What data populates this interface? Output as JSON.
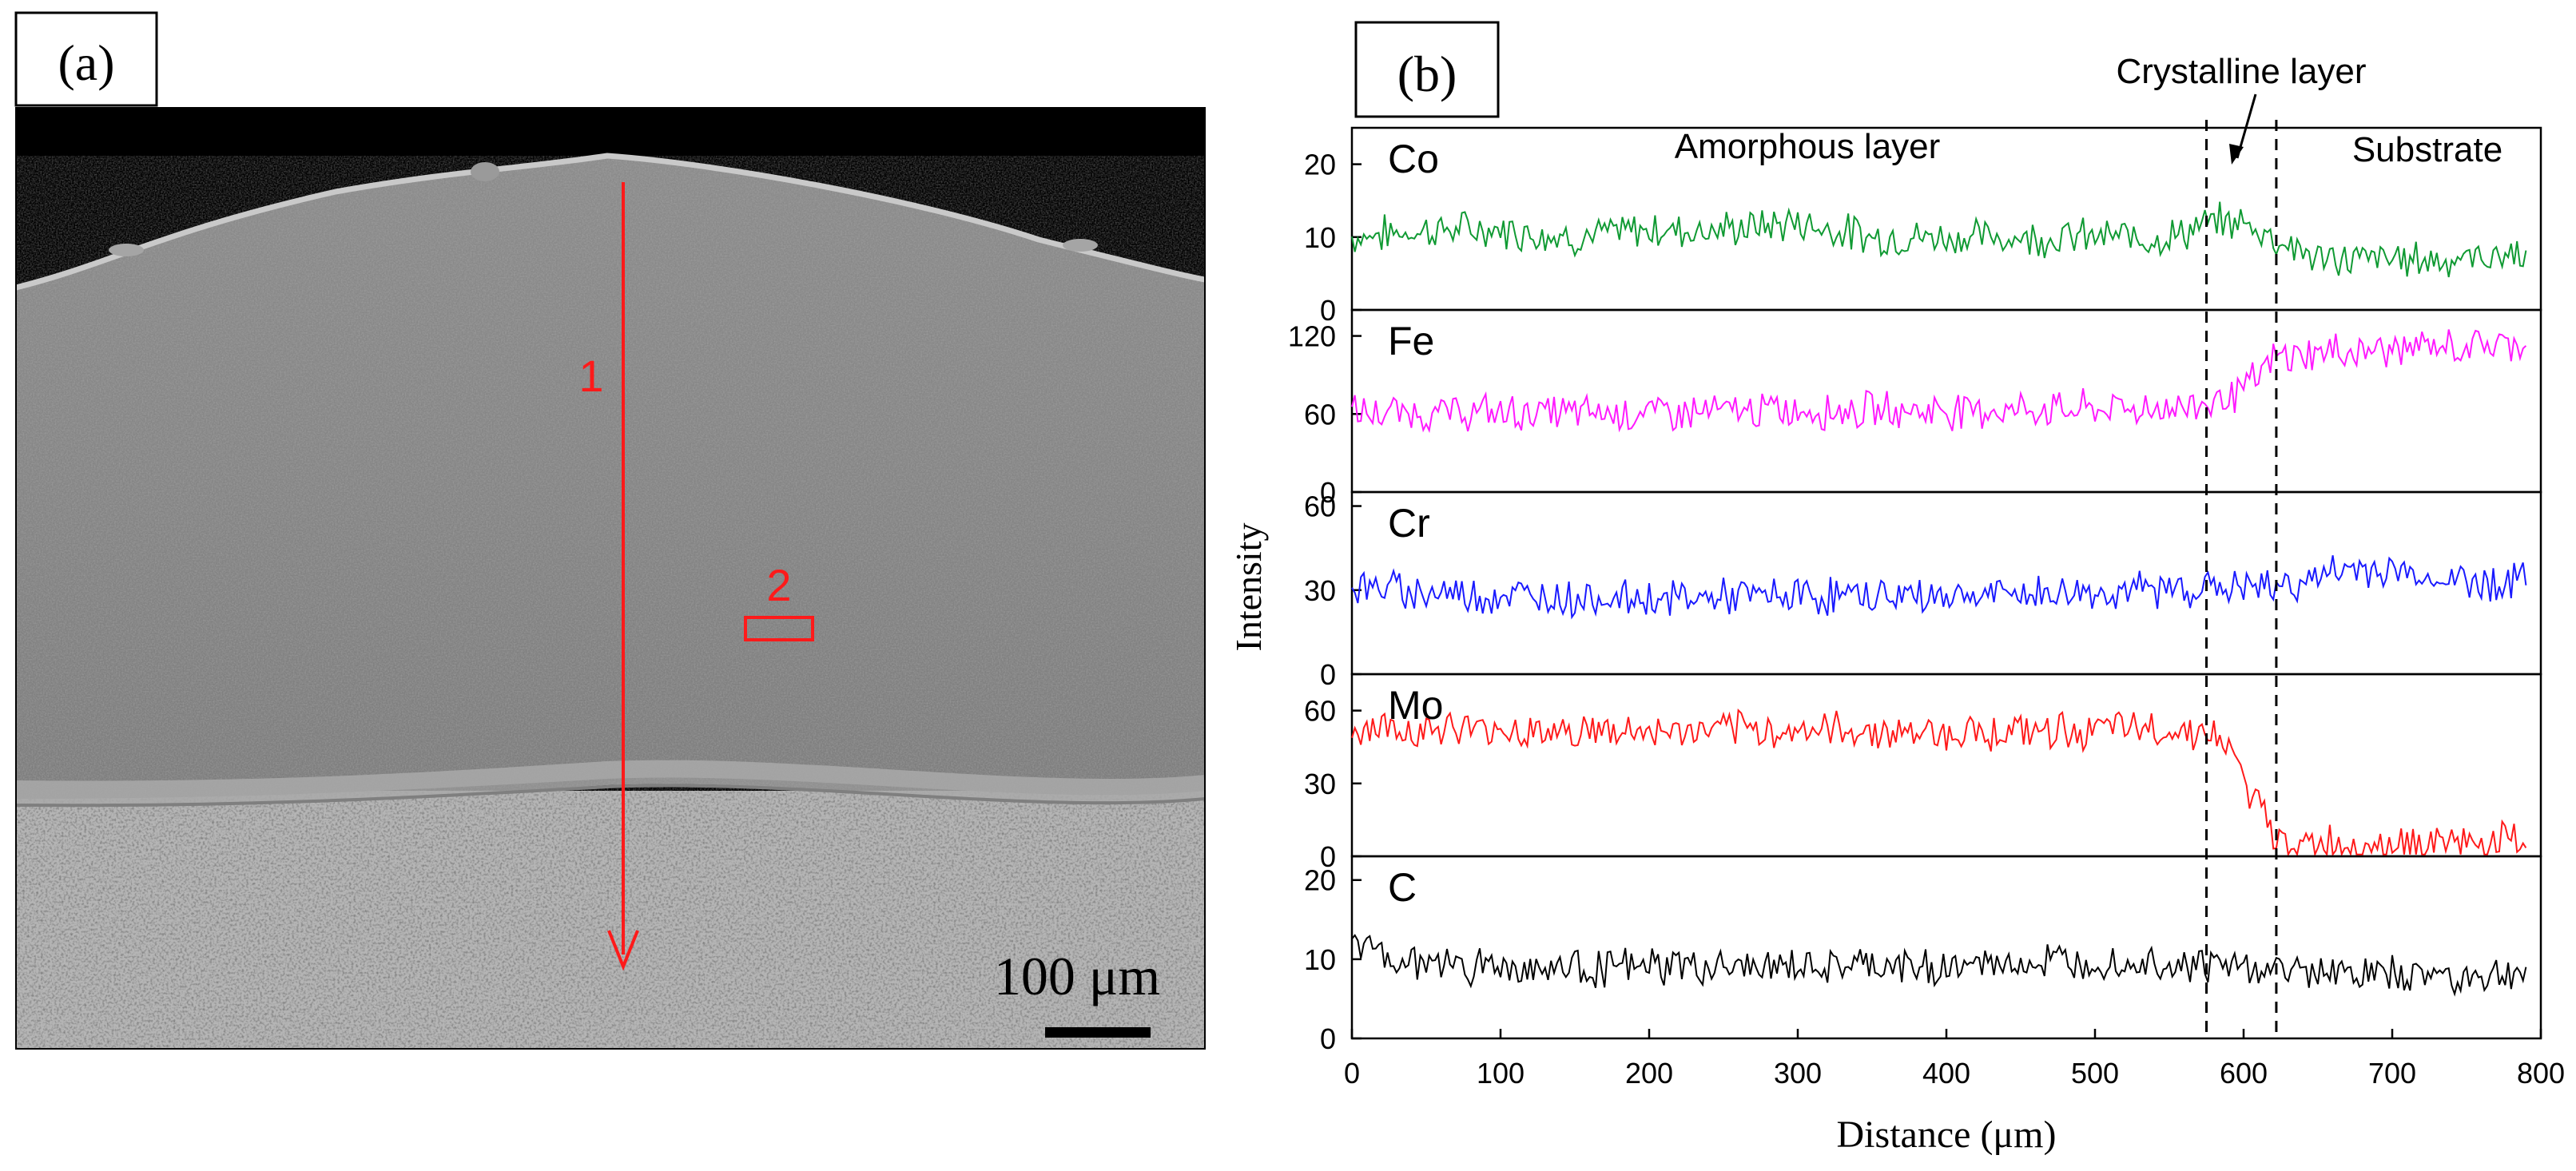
{
  "panel_a": {
    "label": "(a)",
    "arrow_label": "1",
    "box_label": "2",
    "scale_bar_text": "100 μm"
  },
  "panel_b": {
    "label": "(b)",
    "annotations": {
      "amorphous": "Amorphous layer",
      "crystalline": "Crystalline layer",
      "substrate": "Substrate"
    }
  },
  "chart_data": {
    "type": "line",
    "title": "",
    "xlabel": "Distance (μm)",
    "ylabel": "Intensity",
    "xlim": [
      0,
      800
    ],
    "xticks": [
      0,
      100,
      200,
      300,
      400,
      500,
      600,
      700,
      800
    ],
    "xtick_labels": [
      "0",
      "100",
      "200",
      "300",
      "400",
      "500",
      "600",
      "700",
      "800"
    ],
    "boundaries": [
      575,
      622
    ],
    "series": [
      {
        "name": "Co",
        "color": "#109a33",
        "ylim": [
          0,
          25
        ],
        "yticks": [
          0,
          10,
          20
        ],
        "ytick_labels": [
          "0",
          "10",
          "20"
        ],
        "points": [
          [
            0,
            10
          ],
          [
            50,
            11
          ],
          [
            100,
            11
          ],
          [
            150,
            10
          ],
          [
            200,
            11
          ],
          [
            250,
            11
          ],
          [
            300,
            12
          ],
          [
            350,
            10
          ],
          [
            400,
            10
          ],
          [
            450,
            10
          ],
          [
            500,
            10
          ],
          [
            550,
            10
          ],
          [
            580,
            12
          ],
          [
            600,
            12
          ],
          [
            620,
            10
          ],
          [
            650,
            7
          ],
          [
            700,
            7
          ],
          [
            750,
            7
          ],
          [
            790,
            8
          ]
        ]
      },
      {
        "name": "Fe",
        "color": "#ff1aff",
        "ylim": [
          0,
          140
        ],
        "yticks": [
          0,
          60,
          120
        ],
        "ytick_labels": [
          "0",
          "60",
          "120"
        ],
        "points": [
          [
            0,
            60
          ],
          [
            100,
            61
          ],
          [
            200,
            61
          ],
          [
            300,
            63
          ],
          [
            400,
            63
          ],
          [
            500,
            64
          ],
          [
            560,
            65
          ],
          [
            578,
            70
          ],
          [
            600,
            78
          ],
          [
            622,
            103
          ],
          [
            650,
            107
          ],
          [
            700,
            110
          ],
          [
            750,
            112
          ],
          [
            790,
            115
          ]
        ]
      },
      {
        "name": "Cr",
        "color": "#1a1aff",
        "ylim": [
          0,
          65
        ],
        "yticks": [
          0,
          30,
          60
        ],
        "ytick_labels": [
          "0",
          "30",
          "60"
        ],
        "points": [
          [
            0,
            31
          ],
          [
            100,
            28
          ],
          [
            200,
            27
          ],
          [
            300,
            28
          ],
          [
            400,
            28
          ],
          [
            500,
            29
          ],
          [
            570,
            31
          ],
          [
            620,
            31
          ],
          [
            680,
            38
          ],
          [
            750,
            33
          ],
          [
            790,
            33
          ]
        ]
      },
      {
        "name": "Mo",
        "color": "#ff1a1a",
        "ylim": [
          0,
          75
        ],
        "yticks": [
          0,
          30,
          60
        ],
        "ytick_labels": [
          "0",
          "30",
          "60"
        ],
        "points": [
          [
            0,
            53
          ],
          [
            100,
            52
          ],
          [
            200,
            51
          ],
          [
            300,
            52
          ],
          [
            400,
            51
          ],
          [
            500,
            52
          ],
          [
            575,
            52
          ],
          [
            590,
            44
          ],
          [
            600,
            32
          ],
          [
            612,
            18
          ],
          [
            622,
            6
          ],
          [
            650,
            5
          ],
          [
            700,
            5
          ],
          [
            790,
            6
          ]
        ]
      },
      {
        "name": "C",
        "color": "#000000",
        "ylim": [
          0,
          23
        ],
        "yticks": [
          0,
          10,
          20
        ],
        "ytick_labels": [
          "0",
          "10",
          "20"
        ],
        "points": [
          [
            0,
            13
          ],
          [
            20,
            10
          ],
          [
            100,
            9
          ],
          [
            200,
            9
          ],
          [
            300,
            9
          ],
          [
            400,
            9
          ],
          [
            500,
            10
          ],
          [
            600,
            9
          ],
          [
            700,
            8
          ],
          [
            790,
            8
          ]
        ]
      }
    ]
  }
}
